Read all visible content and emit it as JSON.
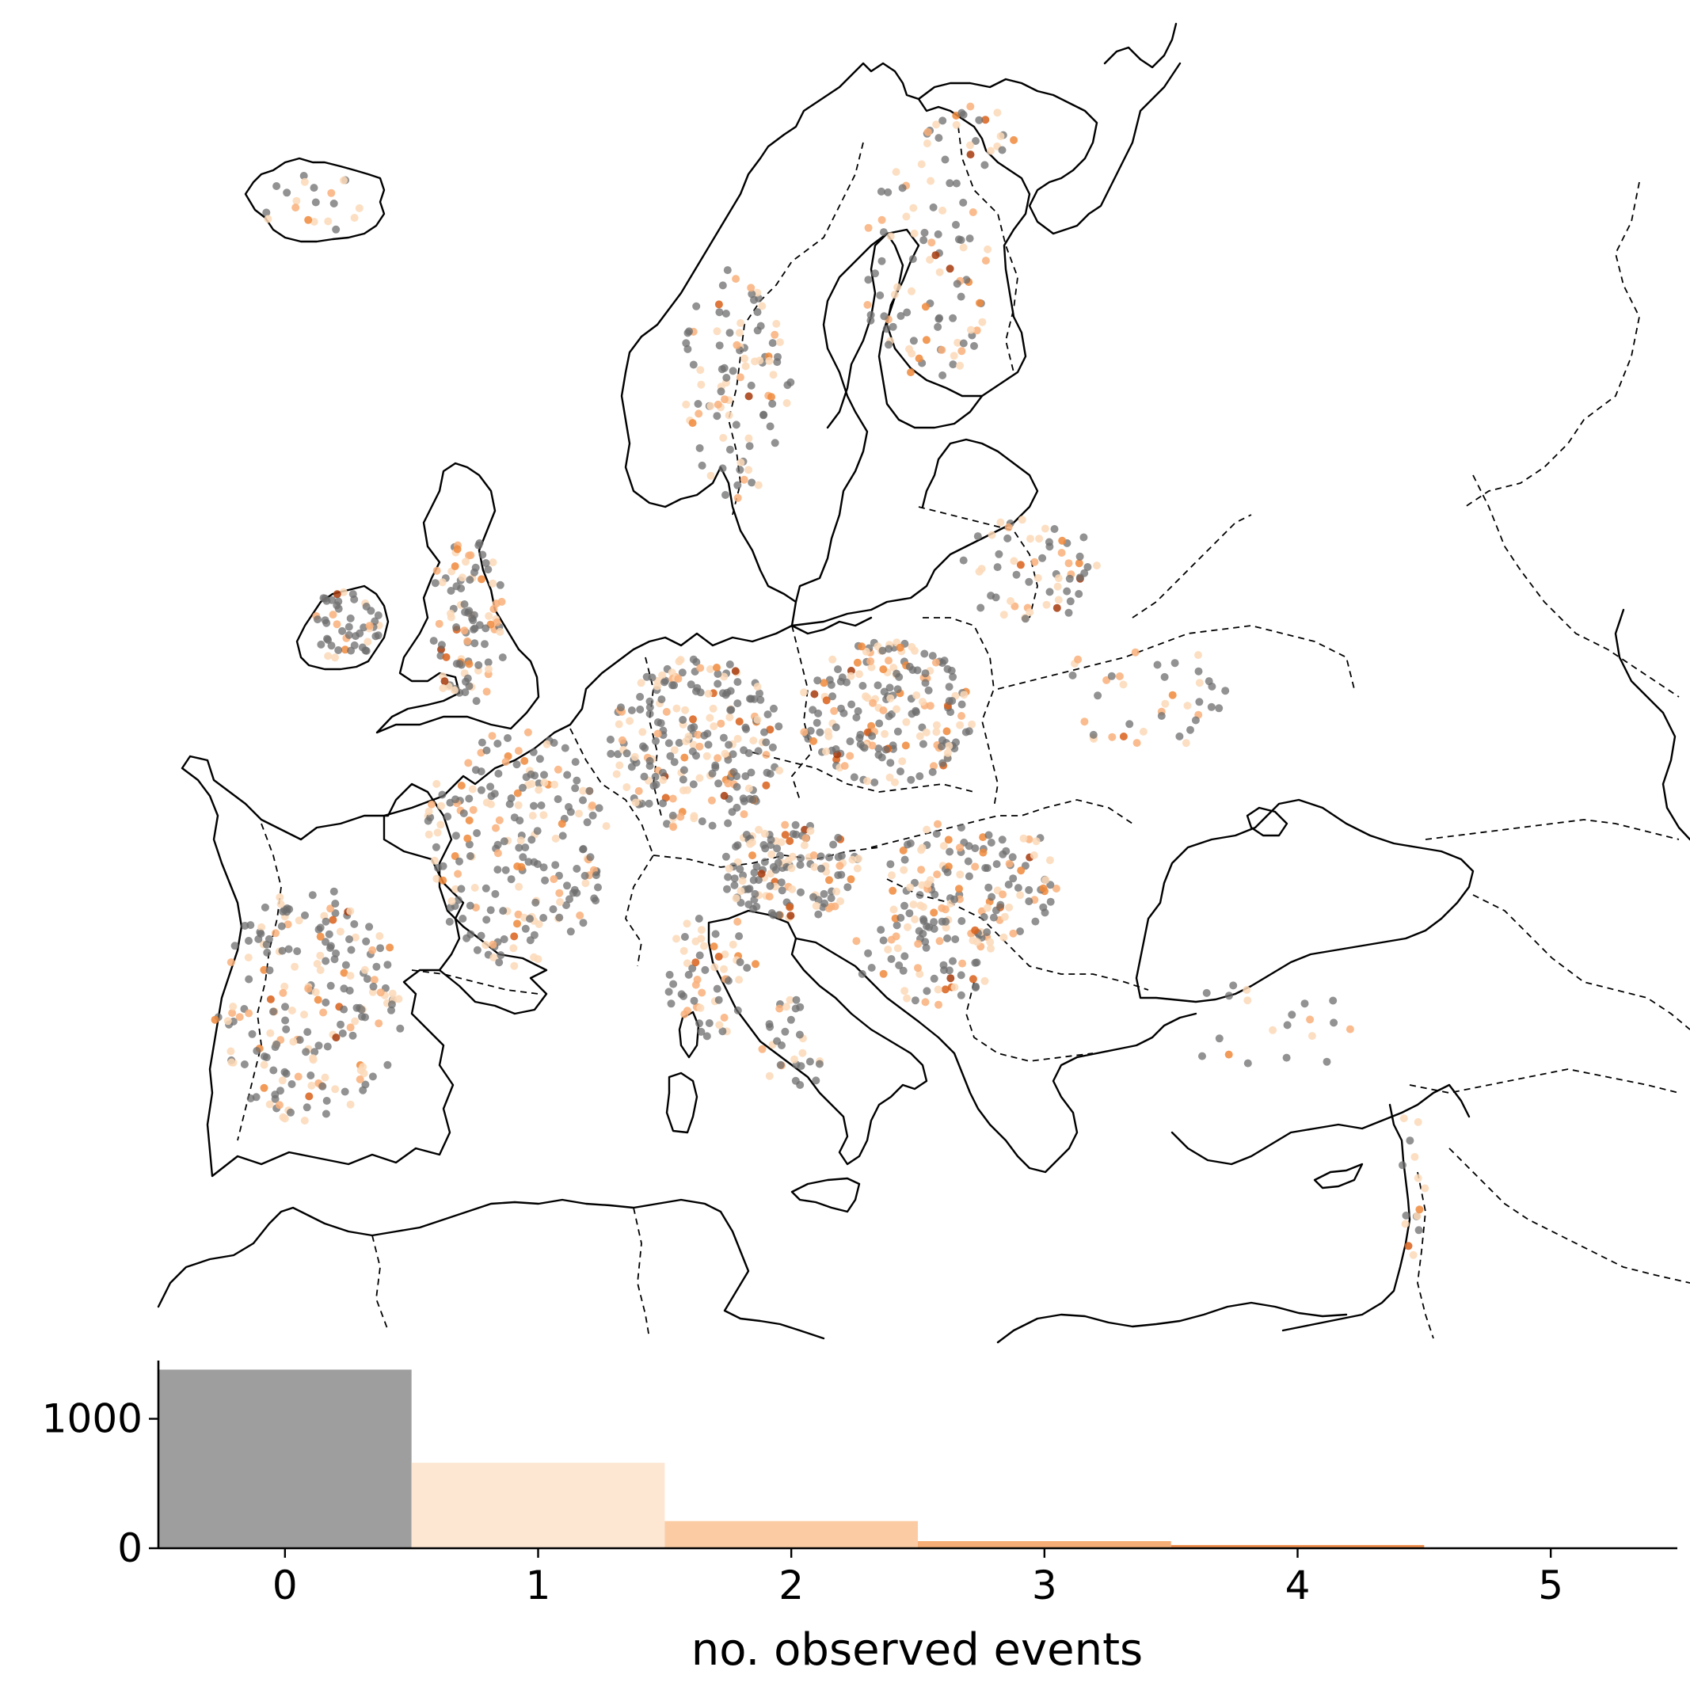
{
  "chart_data": [
    {
      "type": "scatter",
      "title": "",
      "xlabel": "",
      "ylabel": "",
      "colors": {
        "0": "#6e6e6e",
        "1": "#fcd9b8",
        "2": "#f9b07a",
        "3": "#f08a3c",
        "4": "#d9601a",
        "5": "#a63a0c"
      }
    },
    {
      "type": "bar",
      "categories": [
        "0",
        "1",
        "2",
        "3",
        "4",
        "5"
      ],
      "values": [
        1380,
        660,
        210,
        55,
        25,
        0
      ],
      "colors": [
        "#9e9e9e",
        "#fde6d2",
        "#fbcca4",
        "#f6ad76",
        "#ef8e4c",
        "#e0661f"
      ],
      "xlabel": "no. observed events",
      "ylabel": "",
      "ylim": [
        0,
        1450
      ],
      "yticks": [
        0,
        1000
      ],
      "xlim": [
        -0.5,
        5.5
      ]
    }
  ]
}
